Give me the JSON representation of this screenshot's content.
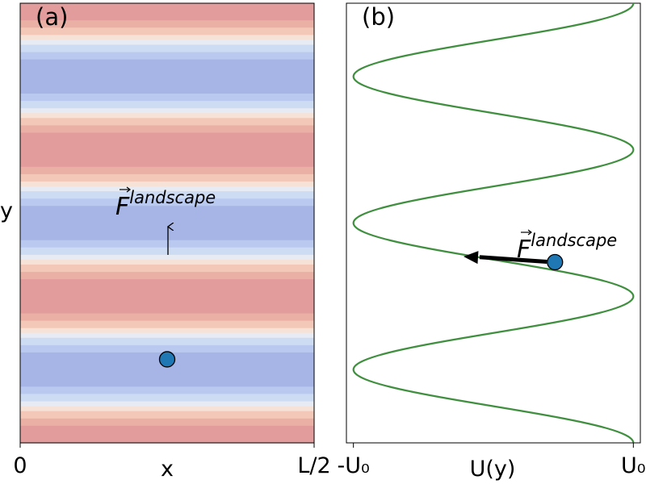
{
  "chart_data": [
    {
      "type": "heatmap",
      "panel_label": "(a)",
      "xlabel": "x",
      "ylabel": "y",
      "x_tick_labels": [
        "0",
        "L/2"
      ],
      "periods": 3,
      "colormap": "coolwarm",
      "color_levels": [
        "#e29c9c",
        "#ebb0a5",
        "#f4c8b8",
        "#f6e2d6",
        "#e7ebf3",
        "#cddcf3",
        "#b9c9ef",
        "#a6b4e6"
      ],
      "particle": {
        "x_fraction": 0.5,
        "phase_fraction": 0.57,
        "color": "#1f77b4"
      },
      "force_label": "F",
      "force_label_sup": "landscape"
    },
    {
      "type": "line",
      "panel_label": "(b)",
      "xlabel": "U(y)",
      "x_tick_labels": [
        "-U₀",
        "U₀"
      ],
      "curve": "U(y) = U0 cos(k y)",
      "xlim": [
        -1.05,
        1.05
      ],
      "periods": 3,
      "line_color": "#3f8f3f",
      "particle": {
        "U": 0.44,
        "color": "#1f77b4"
      },
      "force_label": "F",
      "force_label_sup": "landscape"
    }
  ]
}
